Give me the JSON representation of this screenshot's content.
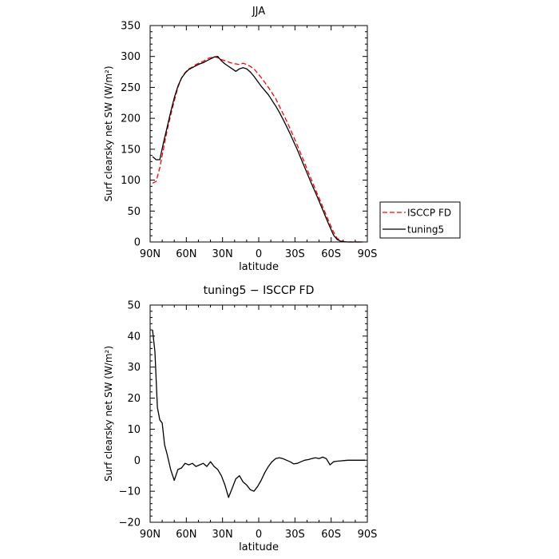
{
  "chart_data": [
    {
      "type": "line",
      "title": "JJA",
      "xlabel": "latitude",
      "ylabel": "Surf clearsky net SW (W/m²)",
      "xlim": [
        90,
        -90
      ],
      "ylim": [
        0,
        350
      ],
      "xticks": [
        90,
        60,
        30,
        0,
        -30,
        -60,
        -90
      ],
      "xtick_labels": [
        "90N",
        "60N",
        "30N",
        "0",
        "30S",
        "60S",
        "90S"
      ],
      "yticks": [
        0,
        50,
        100,
        150,
        200,
        250,
        300,
        350
      ],
      "legend": "outside-right",
      "series": [
        {
          "name": "ISCCP FD",
          "color": "#ff0000",
          "dash": "dashed",
          "x": [
            88,
            85,
            82,
            79,
            76,
            73,
            70,
            67,
            64,
            61,
            58,
            55,
            52,
            49,
            46,
            43,
            40,
            37,
            34,
            31,
            28,
            25,
            22,
            19,
            16,
            13,
            10,
            7,
            4,
            1,
            -2,
            -5,
            -8,
            -11,
            -14,
            -17,
            -20,
            -23,
            -26,
            -29,
            -32,
            -35,
            -38,
            -41,
            -44,
            -47,
            -50,
            -53,
            -56,
            -59,
            -62,
            -65,
            -68,
            -71,
            -74,
            -77,
            -80,
            -83,
            -86
          ],
          "y": [
            95,
            98,
            120,
            150,
            180,
            205,
            228,
            250,
            265,
            274,
            280,
            283,
            287,
            290,
            292,
            296,
            298,
            300,
            298,
            295,
            293,
            291,
            289,
            288,
            287,
            289,
            287,
            284,
            280,
            273,
            266,
            258,
            250,
            241,
            232,
            220,
            208,
            196,
            183,
            170,
            156,
            142,
            128,
            113,
            99,
            85,
            71,
            57,
            43,
            29,
            16,
            6,
            2,
            0.5,
            0,
            0,
            0,
            0,
            0
          ]
        },
        {
          "name": "tuning5",
          "color": "#000000",
          "dash": "solid",
          "x": [
            88,
            85,
            82,
            79,
            76,
            73,
            70,
            67,
            64,
            61,
            58,
            55,
            52,
            49,
            46,
            43,
            40,
            37,
            34,
            31,
            28,
            25,
            22,
            19,
            16,
            13,
            10,
            7,
            4,
            1,
            -2,
            -5,
            -8,
            -11,
            -14,
            -17,
            -20,
            -23,
            -26,
            -29,
            -32,
            -35,
            -38,
            -41,
            -44,
            -47,
            -50,
            -53,
            -56,
            -59,
            -62,
            -65,
            -68,
            -71,
            -74,
            -77,
            -80,
            -83,
            -86
          ],
          "y": [
            138,
            133,
            133,
            160,
            185,
            210,
            233,
            252,
            265,
            273,
            279,
            282,
            285,
            288,
            290,
            293,
            296,
            299,
            300,
            293,
            288,
            284,
            280,
            276,
            280,
            282,
            280,
            275,
            268,
            260,
            252,
            245,
            238,
            229,
            220,
            210,
            199,
            187,
            175,
            162,
            149,
            135,
            121,
            107,
            93,
            80,
            66,
            52,
            38,
            24,
            11,
            4,
            1,
            0.3,
            0,
            0,
            0,
            0,
            0
          ]
        }
      ]
    },
    {
      "type": "line",
      "title": "tuning5 − ISCCP FD",
      "xlabel": "latitude",
      "ylabel": "Surf clearsky net SW (W/m²)",
      "xlim": [
        90,
        -90
      ],
      "ylim": [
        -20,
        50
      ],
      "xticks": [
        90,
        60,
        30,
        0,
        -30,
        -60,
        -90
      ],
      "xtick_labels": [
        "90N",
        "60N",
        "30N",
        "0",
        "30S",
        "60S",
        "90S"
      ],
      "yticks": [
        -20,
        -10,
        0,
        10,
        20,
        30,
        40,
        50
      ],
      "series": [
        {
          "color": "#000000",
          "dash": "solid",
          "x": [
            88,
            86,
            84,
            82,
            80,
            78,
            76,
            73,
            70,
            67,
            64,
            61,
            58,
            55,
            52,
            49,
            46,
            43,
            40,
            37,
            34,
            31,
            28,
            25,
            22,
            19,
            16,
            13,
            10,
            7,
            4,
            1,
            -2,
            -5,
            -8,
            -11,
            -14,
            -17,
            -20,
            -23,
            -26,
            -29,
            -32,
            -35,
            -38,
            -41,
            -44,
            -47,
            -50,
            -53,
            -56,
            -59,
            -62,
            -65,
            -68,
            -71,
            -74,
            -77,
            -80,
            -83,
            -86,
            -88
          ],
          "y": [
            42,
            35,
            17,
            13,
            12,
            5,
            2,
            -3,
            -6.5,
            -3,
            -2.5,
            -1,
            -1.5,
            -1,
            -2,
            -1.5,
            -1,
            -2,
            -0.5,
            -2,
            -3,
            -5,
            -8,
            -12,
            -9,
            -6,
            -5,
            -7,
            -8,
            -9.5,
            -10,
            -8.5,
            -6.5,
            -4,
            -2,
            -0.5,
            0.5,
            0.8,
            0.5,
            0,
            -0.5,
            -1.2,
            -1,
            -0.5,
            0,
            0.2,
            0.5,
            0.8,
            0.5,
            1,
            0.5,
            -1.5,
            -0.5,
            -0.3,
            -0.2,
            -0.1,
            0,
            0,
            0,
            0,
            0,
            0
          ]
        }
      ]
    }
  ]
}
